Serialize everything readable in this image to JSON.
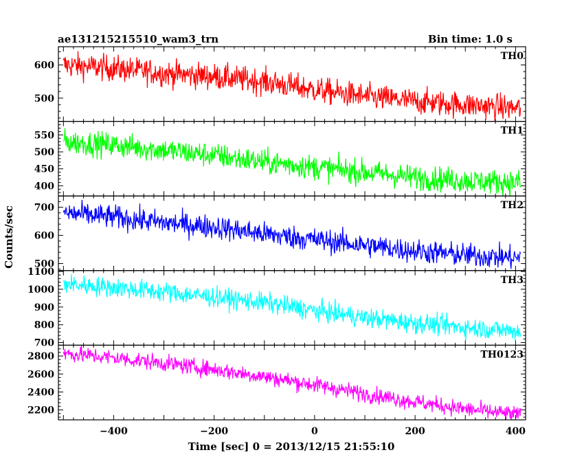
{
  "chart_data": {
    "type": "line",
    "title": "ae131215215510_wam3_trn",
    "subtitle": "Bin time: 1.0 s",
    "xlabel": "Time [sec] 0 = 2013/12/15 21:55:10",
    "ylabel": "Counts/sec",
    "xlim": [
      -510,
      420
    ],
    "xticks": [
      -400,
      -200,
      0,
      200,
      400
    ],
    "grid": false,
    "legend": "none",
    "panels": [
      {
        "name": "TH0",
        "color": "#ff0000",
        "ylim": [
          430,
          655
        ],
        "yticks": [
          500,
          600
        ],
        "x": [
          -500,
          -400,
          -300,
          -200,
          -100,
          0,
          100,
          200,
          300,
          400
        ],
        "values": [
          600,
          590,
          575,
          565,
          550,
          525,
          505,
          490,
          480,
          470
        ],
        "noise": 28
      },
      {
        "name": "TH1",
        "color": "#00ff00",
        "ylim": [
          370,
          590
        ],
        "yticks": [
          400,
          450,
          500,
          550
        ],
        "x": [
          -500,
          -400,
          -300,
          -200,
          -100,
          0,
          100,
          200,
          300,
          400
        ],
        "values": [
          530,
          520,
          505,
          490,
          470,
          455,
          440,
          425,
          415,
          410
        ],
        "noise": 26
      },
      {
        "name": "TH2",
        "color": "#0000ff",
        "ylim": [
          475,
          740
        ],
        "yticks": [
          500,
          600,
          700
        ],
        "x": [
          -500,
          -400,
          -300,
          -200,
          -100,
          0,
          100,
          200,
          300,
          400
        ],
        "values": [
          680,
          665,
          645,
          630,
          605,
          585,
          565,
          545,
          530,
          520
        ],
        "noise": 30
      },
      {
        "name": "TH3",
        "color": "#00ffff",
        "ylim": [
          685,
          1105
        ],
        "yticks": [
          700,
          800,
          900,
          1000,
          1100
        ],
        "x": [
          -500,
          -400,
          -300,
          -200,
          -100,
          0,
          100,
          200,
          300,
          400
        ],
        "values": [
          1030,
          1010,
          985,
          955,
          925,
          880,
          840,
          810,
          785,
          765
        ],
        "noise": 40
      },
      {
        "name": "TH0123",
        "color": "#ff00ff",
        "ylim": [
          2090,
          2920
        ],
        "yticks": [
          2200,
          2400,
          2600,
          2800
        ],
        "x": [
          -500,
          -400,
          -300,
          -200,
          -100,
          0,
          100,
          200,
          300,
          400
        ],
        "values": [
          2830,
          2780,
          2720,
          2650,
          2570,
          2480,
          2380,
          2290,
          2210,
          2150
        ],
        "noise": 65
      }
    ]
  }
}
